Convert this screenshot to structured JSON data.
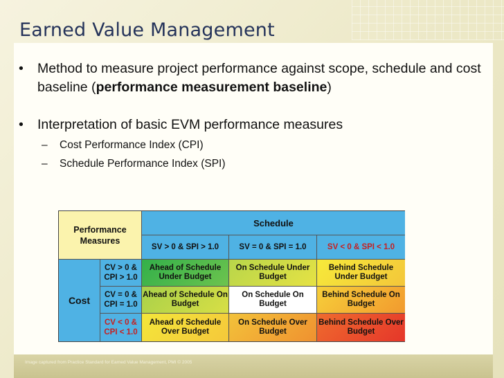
{
  "title": "Earned Value Management",
  "bullets": {
    "b1_text": "Method to measure project performance against scope, schedule and cost baseline (",
    "b1_bold": "performance measurement baseline",
    "b1_end": ")",
    "b2_text": "Interpretation of basic EVM performance measures",
    "sub1": "Cost Performance Index (CPI)",
    "sub2": "Schedule Performance Index (SPI)"
  },
  "table": {
    "corner": "Performance Measures",
    "schedule_header": "Schedule",
    "schedule_cols": [
      "SV > 0 & SPI > 1.0",
      "SV = 0 & SPI = 1.0",
      "SV < 0 & SPI < 1.0"
    ],
    "cost_header": "Cost",
    "cost_rows": [
      "CV > 0 & CPI > 1.0",
      "CV = 0 & CPI = 1.0",
      "CV < 0 & CPI < 1.0"
    ],
    "cells": [
      [
        "Ahead of Schedule Under Budget",
        "On Schedule Under Budget",
        "Behind Schedule Under Budget"
      ],
      [
        "Ahead of Schedule On Budget",
        "On Schedule On Budget",
        "Behind Schedule On Budget"
      ],
      [
        "Ahead of Schedule Over Budget",
        "On Schedule Over Budget",
        "Behind Schedule Over Budget"
      ]
    ],
    "colors": {
      "header_blue": "#4fb2e4",
      "corner_yellow": "#fbf3ad",
      "negative_red": "#c62020"
    }
  },
  "caption": "Image captured from Practice Standard for Earned Value Management, PMI  © 2005"
}
